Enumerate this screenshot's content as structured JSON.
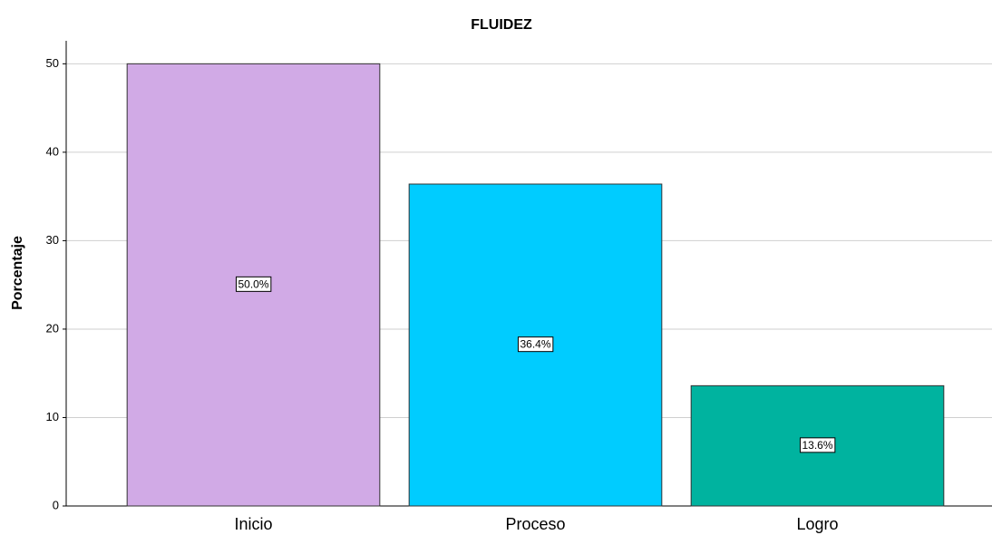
{
  "chart_data": {
    "type": "bar",
    "title": "FLUIDEZ",
    "y_label": "Porcentaje",
    "categories": [
      "Inicio",
      "Proceso",
      "Logro"
    ],
    "values": [
      50.0,
      36.4,
      13.6
    ],
    "value_labels": [
      "50.0%",
      "36.4%",
      "13.6%"
    ],
    "colors": [
      "#d1aae6",
      "#00ccff",
      "#00b39f"
    ],
    "ylim": [
      0,
      52.6
    ],
    "yticks": [
      0,
      10,
      20,
      30,
      40,
      50
    ],
    "grid": true
  }
}
